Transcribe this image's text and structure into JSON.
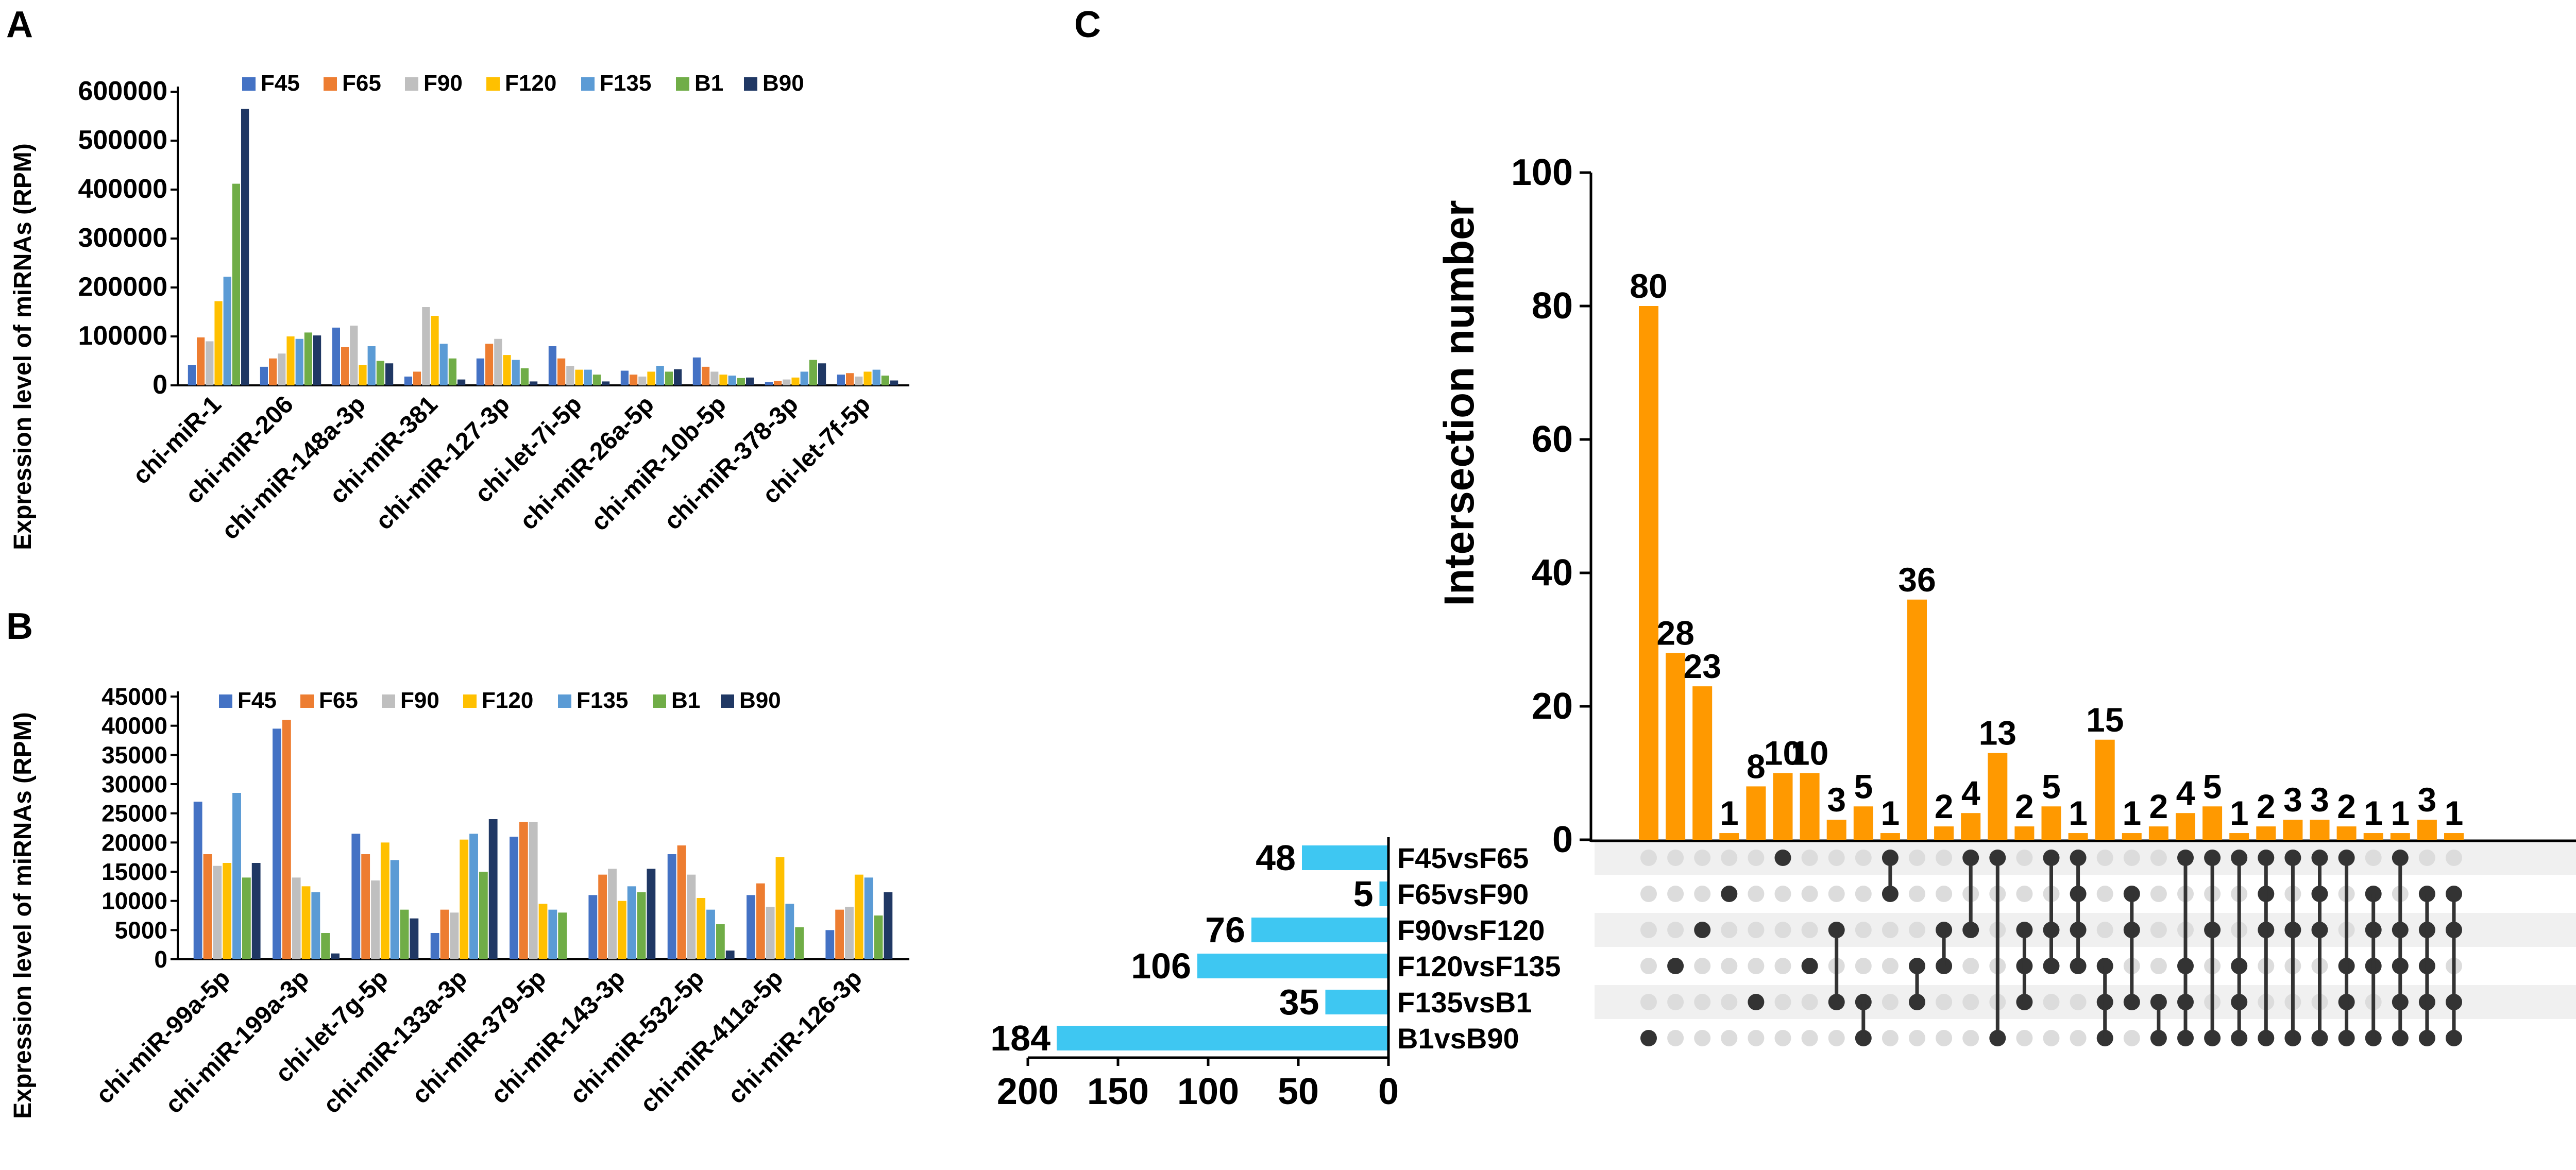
{
  "panels": {
    "a": "A",
    "b": "B",
    "c": "C"
  },
  "series_names": [
    "F45",
    "F65",
    "F90",
    "F120",
    "F135",
    "B1",
    "B90"
  ],
  "colors": {
    "F45": "#4472C4",
    "F65": "#ED7D31",
    "F90": "#BFBFBF",
    "F120": "#FFC000",
    "F135": "#5B9BD5",
    "B1": "#70AD47",
    "B90": "#203864",
    "upset_bar": "#FF9900",
    "set_bar": "#3EC7F2",
    "dot_on": "#333333",
    "dot_off": "#DCDCDC",
    "stripe": "#F0F0F0"
  },
  "chart_data": [
    {
      "type": "bar",
      "panel": "A",
      "ylabel": "Expression level of miRNAs (RPM)",
      "ylim": [
        0,
        600000
      ],
      "yticks": [
        0,
        100000,
        200000,
        300000,
        400000,
        500000,
        600000
      ],
      "ytick_labels": [
        "0",
        "100000",
        "200000",
        "300000",
        "400000",
        "500000",
        "600000"
      ],
      "legend": "top-left",
      "categories": [
        "chi-miR-1",
        "chi-miR-206",
        "chi-miR-148a-3p",
        "chi-miR-381",
        "chi-miR-127-3p",
        "chi-let-7i-5p",
        "chi-miR-26a-5p",
        "chi-miR-10b-5p",
        "chi-miR-378-3p",
        "chi-let-7f-5p"
      ],
      "series": [
        {
          "name": "F45",
          "values": [
            42000,
            38000,
            118000,
            18000,
            55000,
            80000,
            30000,
            57000,
            7000,
            22000
          ]
        },
        {
          "name": "F65",
          "values": [
            98000,
            55000,
            78000,
            28000,
            85000,
            55000,
            22000,
            38000,
            9000,
            25000
          ]
        },
        {
          "name": "F90",
          "values": [
            90000,
            65000,
            122000,
            160000,
            95000,
            40000,
            18000,
            28000,
            12000,
            18000
          ]
        },
        {
          "name": "F120",
          "values": [
            172000,
            100000,
            42000,
            142000,
            62000,
            32000,
            28000,
            22000,
            16000,
            28000
          ]
        },
        {
          "name": "F135",
          "values": [
            222000,
            95000,
            80000,
            85000,
            52000,
            32000,
            40000,
            20000,
            28000,
            32000
          ]
        },
        {
          "name": "B1",
          "values": [
            412000,
            108000,
            50000,
            55000,
            35000,
            22000,
            28000,
            15000,
            52000,
            20000
          ]
        },
        {
          "name": "B90",
          "values": [
            565000,
            102000,
            45000,
            12000,
            8000,
            8000,
            33000,
            16000,
            45000,
            10000
          ]
        }
      ]
    },
    {
      "type": "bar",
      "panel": "B",
      "ylabel": "Expression level of miRNAs (RPM)",
      "ylim": [
        0,
        45000
      ],
      "yticks": [
        0,
        5000,
        10000,
        15000,
        20000,
        25000,
        30000,
        35000,
        40000,
        45000
      ],
      "ytick_labels": [
        "0",
        "5000",
        "10000",
        "15000",
        "20000",
        "25000",
        "30000",
        "35000",
        "40000",
        "45000"
      ],
      "legend": "top-left",
      "categories": [
        "chi-miR-99a-5p",
        "chi-miR-199a-3p",
        "chi-let-7g-5p",
        "chi-miR-133a-3p",
        "chi-miR-379-5p",
        "chi-miR-143-3p",
        "chi-miR-532-5p",
        "chi-miR-411a-5p",
        "chi-miR-126-3p"
      ],
      "series": [
        {
          "name": "F45",
          "values": [
            27000,
            39500,
            21500,
            4500,
            21000,
            11000,
            18000,
            11000,
            5000
          ]
        },
        {
          "name": "F65",
          "values": [
            18000,
            41000,
            18000,
            8500,
            23500,
            14500,
            19500,
            13000,
            8500
          ]
        },
        {
          "name": "F90",
          "values": [
            16000,
            14000,
            13500,
            8000,
            23500,
            15500,
            14500,
            9000,
            9000
          ]
        },
        {
          "name": "F120",
          "values": [
            16500,
            12500,
            20000,
            20500,
            9500,
            10000,
            10500,
            17500,
            14500
          ]
        },
        {
          "name": "F135",
          "values": [
            28500,
            11500,
            17000,
            21500,
            8500,
            12500,
            8500,
            9500,
            14000
          ]
        },
        {
          "name": "B1",
          "values": [
            14000,
            4500,
            8500,
            15000,
            8000,
            11500,
            6000,
            5500,
            7500
          ]
        },
        {
          "name": "B90",
          "values": [
            16500,
            1000,
            7000,
            24000,
            0,
            15500,
            1500,
            0,
            11500
          ]
        }
      ]
    },
    {
      "type": "upset",
      "panel": "C",
      "ylabel": "Intersection number",
      "ylim": [
        0,
        100
      ],
      "yticks": [
        0,
        20,
        40,
        60,
        80,
        100
      ],
      "ytick_labels": [
        "0",
        "20",
        "40",
        "60",
        "80",
        "100"
      ],
      "sets": [
        "F45vsF65",
        "F65vsF90",
        "F90vsF120",
        "F120vsF135",
        "F135vsB1",
        "B1vsB90"
      ],
      "set_sizes": [
        48,
        5,
        76,
        106,
        35,
        184
      ],
      "set_size_labels": [
        "48",
        "5",
        "76",
        "106",
        "35",
        "184"
      ],
      "set_xlim": [
        0,
        200
      ],
      "set_xticks": [
        200,
        150,
        100,
        50,
        0
      ],
      "set_xtick_labels": [
        "200",
        "150",
        "100",
        "50",
        "0"
      ],
      "intersection_sizes": [
        80,
        28,
        23,
        1,
        8,
        10,
        10,
        3,
        5,
        1,
        36,
        2,
        4,
        13,
        2,
        5,
        1,
        15,
        1,
        2,
        4,
        5,
        1,
        2,
        3,
        3,
        2,
        1,
        1,
        3,
        1
      ],
      "intersection_labels": [
        "80",
        "28",
        "23",
        "1",
        "8",
        "10",
        "10",
        "3",
        "5",
        "1",
        "36",
        "2",
        "4",
        "13",
        "2",
        "5",
        "1",
        "15",
        "1",
        "2",
        "4",
        "5",
        "1",
        "2",
        "3",
        "3",
        "2",
        "1",
        "1",
        "3",
        "1"
      ],
      "intersection_sets": [
        [
          5
        ],
        [
          3
        ],
        [
          2
        ],
        [
          1
        ],
        [
          4
        ],
        [
          0
        ],
        [
          3
        ],
        [
          2,
          4
        ],
        [
          4,
          5
        ],
        [
          0,
          1
        ],
        [
          3,
          4
        ],
        [
          2,
          3
        ],
        [
          0,
          2
        ],
        [
          0,
          5
        ],
        [
          2,
          3,
          4
        ],
        [
          0,
          2,
          3
        ],
        [
          0,
          1,
          2,
          3
        ],
        [
          3,
          4,
          5
        ],
        [
          1,
          2,
          4
        ],
        [
          4,
          5
        ],
        [
          0,
          3,
          4,
          5
        ],
        [
          0,
          2,
          5
        ],
        [
          0,
          3,
          4,
          5
        ],
        [
          0,
          1,
          2,
          5
        ],
        [
          0,
          2,
          5
        ],
        [
          0,
          1,
          2,
          5
        ],
        [
          0,
          3,
          4,
          5
        ],
        [
          1,
          2,
          3,
          5
        ],
        [
          0,
          2,
          3,
          4,
          5
        ],
        [
          1,
          2,
          3,
          4,
          5
        ],
        [
          1,
          2,
          4,
          5
        ]
      ]
    }
  ]
}
